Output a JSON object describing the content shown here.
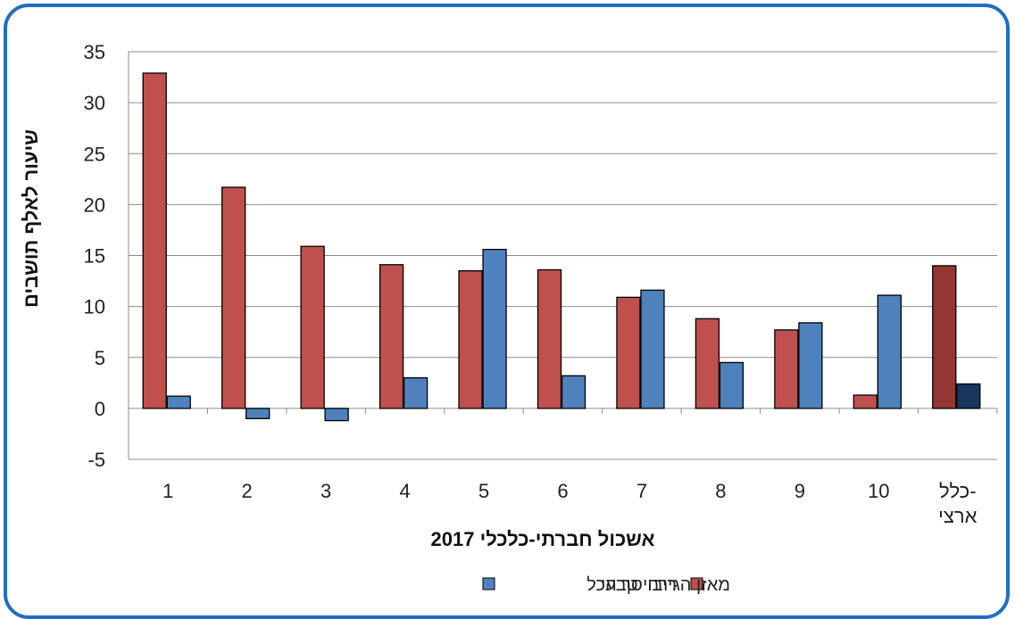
{
  "chart_data": {
    "type": "bar",
    "title": "",
    "xlabel": "אשכול חברתי-כלכלי 2017",
    "ylabel": "שיעור לאלף תושבים",
    "ylim": [
      -5,
      35
    ],
    "yticks": [
      35,
      30,
      25,
      20,
      15,
      10,
      5,
      0,
      -5
    ],
    "grid": true,
    "legend_position": "bottom",
    "categories": [
      "1",
      "2",
      "3",
      "4",
      "5",
      "6",
      "7",
      "8",
      "9",
      "10",
      "כלל-\nארצי"
    ],
    "series": [
      {
        "name": "ריבוי טבעי",
        "color": "#c0504d",
        "highlight_color": "#943634",
        "values": [
          32.9,
          21.7,
          15.9,
          14.1,
          13.5,
          13.6,
          10.9,
          8.8,
          7.7,
          1.3,
          14.0
        ]
      },
      {
        "name": "מאזן הגירה סך הכל",
        "color": "#4f81bd",
        "highlight_color": "#17375e",
        "values": [
          1.2,
          -1.0,
          -1.2,
          3.0,
          15.6,
          3.2,
          11.6,
          4.5,
          8.4,
          11.1,
          2.4
        ]
      }
    ],
    "highlight_category_index": 10
  },
  "colors": {
    "frame": "#1f6fc1",
    "grid": "#8c8c8c",
    "bar_outline": "#000000"
  }
}
